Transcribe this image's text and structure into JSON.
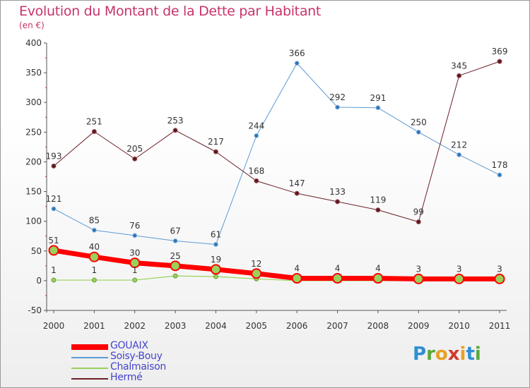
{
  "header": {
    "title": "Evolution du Montant de la Dette par Habitant",
    "subtitle": "(en €)"
  },
  "logo": {
    "text": "Proxiti"
  },
  "colors": {
    "gouaix": "#ff0000",
    "soisy": "#5b9bd5",
    "chalmaison": "#99d15c",
    "herme": "#6b1f26",
    "title": "#c8336c",
    "legend_text": "#4444cc"
  },
  "chart_data": {
    "type": "line",
    "title": "Evolution du Montant de la Dette par Habitant",
    "subtitle": "(en €)",
    "xlabel": "",
    "ylabel": "",
    "categories": [
      "2000",
      "2001",
      "2002",
      "2003",
      "2004",
      "2005",
      "2006",
      "2007",
      "2008",
      "2009",
      "2010",
      "2011"
    ],
    "ylim": [
      -50,
      400
    ],
    "yticks": [
      -50,
      0,
      50,
      100,
      150,
      200,
      250,
      300,
      350,
      400
    ],
    "grid": false,
    "legend_position": "bottom-left",
    "series": [
      {
        "name": "GOUAIX",
        "color": "#ff0000",
        "labels": true,
        "values": [
          51,
          40,
          30,
          25,
          19,
          12,
          4,
          4,
          4,
          3,
          3,
          3
        ]
      },
      {
        "name": "Soisy-Bouy",
        "color": "#5b9bd5",
        "labels": true,
        "values": [
          121,
          85,
          76,
          67,
          61,
          244,
          366,
          292,
          291,
          250,
          212,
          178
        ]
      },
      {
        "name": "Chalmaison",
        "color": "#99d15c",
        "labels": true,
        "values": [
          1,
          1,
          1,
          8,
          7,
          3,
          0,
          0,
          0,
          0,
          0,
          0
        ],
        "label_values": [
          "1",
          "1",
          "1",
          "",
          "",
          "",
          "",
          "",
          "",
          "",
          "",
          ""
        ]
      },
      {
        "name": "Hermé",
        "color": "#6b1f26",
        "labels": true,
        "values": [
          193,
          251,
          205,
          253,
          217,
          168,
          147,
          133,
          119,
          99,
          345,
          369
        ]
      }
    ]
  }
}
